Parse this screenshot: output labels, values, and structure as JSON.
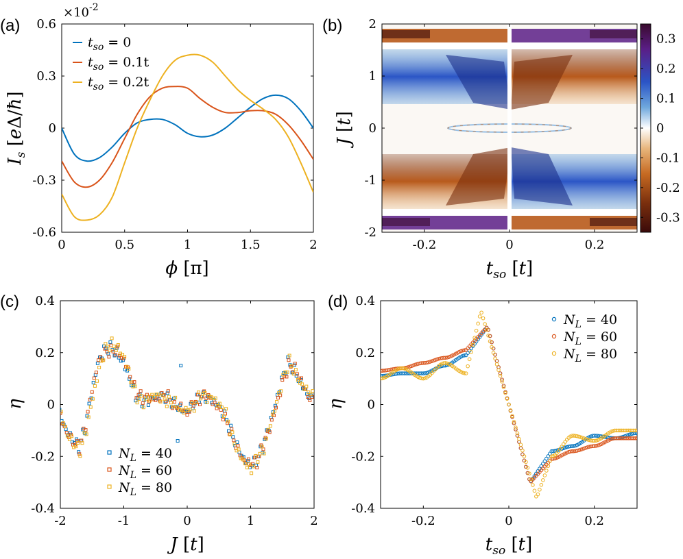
{
  "figure": {
    "panel_labels": [
      "(a)",
      "(b)",
      "(c)",
      "(d)"
    ]
  },
  "chart_data": [
    {
      "id": "a",
      "type": "line",
      "title": "",
      "xlabel": "φ [π]",
      "ylabel": "I_s [eΔ/ħ]",
      "exponent_label": "×10",
      "exponent_power": "-2",
      "xlim": [
        0,
        2
      ],
      "ylim": [
        -0.6,
        0.6
      ],
      "xticks": [
        "0",
        "0.5",
        "1",
        "1.5",
        "2"
      ],
      "yticks": [
        "-0.6",
        "-0.3",
        "0",
        "0.3",
        "0.6"
      ],
      "legend_position": "top-left",
      "x": [
        0,
        0.1,
        0.2,
        0.3,
        0.4,
        0.5,
        0.6,
        0.7,
        0.8,
        0.9,
        1.0,
        1.1,
        1.2,
        1.3,
        1.4,
        1.5,
        1.6,
        1.7,
        1.8,
        1.9,
        2.0
      ],
      "series": [
        {
          "name": "t_so = 0",
          "legend": "tso = 0",
          "color": "#0072BD",
          "values": [
            0.0,
            -0.15,
            -0.19,
            -0.17,
            -0.11,
            -0.03,
            0.03,
            0.05,
            0.05,
            0.02,
            -0.03,
            -0.05,
            -0.04,
            0.0,
            0.06,
            0.12,
            0.17,
            0.19,
            0.17,
            0.1,
            0.0
          ]
        },
        {
          "name": "t_so = 0.1t",
          "legend": "tso = 0.1t",
          "color": "#D95319",
          "values": [
            -0.19,
            -0.31,
            -0.34,
            -0.3,
            -0.2,
            -0.06,
            0.08,
            0.18,
            0.23,
            0.24,
            0.23,
            0.17,
            0.12,
            0.09,
            0.09,
            0.1,
            0.1,
            0.08,
            0.02,
            -0.07,
            -0.18
          ]
        },
        {
          "name": "t_so = 0.2t",
          "legend": "tso = 0.2t",
          "color": "#EDB120",
          "values": [
            -0.38,
            -0.51,
            -0.53,
            -0.5,
            -0.4,
            -0.2,
            0.0,
            0.16,
            0.3,
            0.39,
            0.42,
            0.42,
            0.38,
            0.3,
            0.22,
            0.16,
            0.11,
            0.05,
            -0.05,
            -0.2,
            -0.37
          ]
        }
      ]
    },
    {
      "id": "b",
      "type": "heatmap",
      "xlabel": "t_so [t]",
      "ylabel": "J [t]",
      "xlim": [
        -0.3,
        0.3
      ],
      "ylim": [
        -2,
        2
      ],
      "xticks": [
        "-0.2",
        "0",
        "0.2"
      ],
      "yticks": [
        "-2",
        "-1",
        "0",
        "1",
        "2"
      ],
      "colorbar_ticks": [
        "0.3",
        "0.2",
        "0.1",
        "0",
        "-0.1",
        "-0.2",
        "-0.3"
      ],
      "clim": [
        -0.35,
        0.35
      ],
      "colormap": [
        "#3a0a2e",
        "#5a1e86",
        "#2b55c6",
        "#6fa8dd",
        "#ffffff",
        "#e7b47a",
        "#c66a22",
        "#7a2f0d",
        "#3a0a0a"
      ]
    },
    {
      "id": "c",
      "type": "scatter",
      "xlabel": "J [t]",
      "ylabel": "η",
      "xlim": [
        -2,
        2
      ],
      "ylim": [
        -0.4,
        0.4
      ],
      "xticks": [
        "-2",
        "-1",
        "0",
        "1",
        "2"
      ],
      "yticks": [
        "-0.4",
        "-0.2",
        "0",
        "0.2",
        "0.4"
      ],
      "legend_position": "bottom-left",
      "marker": "square",
      "x": [
        -2.0,
        -1.9,
        -1.8,
        -1.7,
        -1.6,
        -1.5,
        -1.4,
        -1.3,
        -1.2,
        -1.1,
        -1.0,
        -0.9,
        -0.8,
        -0.7,
        -0.6,
        -0.5,
        -0.4,
        -0.3,
        -0.2,
        -0.1,
        0.0,
        0.1,
        0.2,
        0.3,
        0.4,
        0.5,
        0.6,
        0.7,
        0.8,
        0.9,
        1.0,
        1.1,
        1.2,
        1.3,
        1.4,
        1.5,
        1.6,
        1.7,
        1.8,
        1.9,
        2.0
      ],
      "series": [
        {
          "name": "N_L = 40",
          "legend": "NL = 40",
          "color": "#0072BD",
          "values": [
            -0.02,
            -0.08,
            -0.12,
            -0.16,
            -0.1,
            0.02,
            0.14,
            0.2,
            0.22,
            0.21,
            0.18,
            0.12,
            0.04,
            0.01,
            0.0,
            0.01,
            0.02,
            0.02,
            0.01,
            0.0,
            -0.01,
            0.01,
            0.03,
            0.02,
            0.0,
            -0.02,
            -0.05,
            -0.1,
            -0.15,
            -0.19,
            -0.22,
            -0.21,
            -0.17,
            -0.1,
            -0.02,
            0.08,
            0.16,
            0.14,
            0.1,
            0.06,
            0.02
          ],
          "outliers": [
            [
              -0.1,
              0.15
            ],
            [
              -0.15,
              -0.14
            ]
          ]
        },
        {
          "name": "N_L = 60",
          "legend": "NL = 60",
          "color": "#D95319",
          "values": [
            -0.03,
            -0.09,
            -0.13,
            -0.17,
            -0.09,
            0.04,
            0.15,
            0.19,
            0.21,
            0.22,
            0.19,
            0.13,
            0.05,
            0.02,
            0.01,
            0.0,
            0.02,
            0.03,
            0.0,
            0.01,
            -0.02,
            0.02,
            0.02,
            0.03,
            -0.01,
            -0.03,
            -0.06,
            -0.11,
            -0.16,
            -0.2,
            -0.21,
            -0.22,
            -0.16,
            -0.11,
            -0.03,
            0.07,
            0.15,
            0.15,
            0.11,
            0.05,
            0.01
          ]
        },
        {
          "name": "N_L = 80",
          "legend": "NL = 80",
          "color": "#EDB120",
          "values": [
            -0.02,
            -0.1,
            -0.14,
            -0.18,
            -0.11,
            0.01,
            0.12,
            0.21,
            0.24,
            0.23,
            0.2,
            0.11,
            0.03,
            0.0,
            0.01,
            0.02,
            0.01,
            0.01,
            0.02,
            -0.01,
            0.0,
            0.0,
            0.04,
            0.01,
            0.01,
            -0.02,
            -0.04,
            -0.12,
            -0.17,
            -0.21,
            -0.24,
            -0.2,
            -0.18,
            -0.09,
            -0.01,
            0.09,
            0.17,
            0.13,
            0.09,
            0.07,
            0.03
          ]
        }
      ]
    },
    {
      "id": "d",
      "type": "scatter",
      "xlabel": "t_so [t]",
      "ylabel": "η",
      "xlim": [
        -0.3,
        0.3
      ],
      "ylim": [
        -0.4,
        0.4
      ],
      "xticks": [
        "-0.2",
        "0",
        "0.2"
      ],
      "yticks": [
        "-0.4",
        "-0.2",
        "0",
        "0.2",
        "0.4"
      ],
      "legend_position": "top-right",
      "marker": "circle",
      "series": [
        {
          "name": "N_L = 40",
          "legend": "NL = 40",
          "color": "#0072BD",
          "knots": [
            [
              -0.3,
              0.11
            ],
            [
              -0.25,
              0.12
            ],
            [
              -0.2,
              0.12
            ],
            [
              -0.15,
              0.15
            ],
            [
              -0.1,
              0.19
            ],
            [
              -0.05,
              0.3
            ],
            [
              0.0,
              0.0
            ],
            [
              0.05,
              -0.3
            ],
            [
              0.1,
              -0.18
            ],
            [
              0.15,
              -0.16
            ],
            [
              0.2,
              -0.12
            ],
            [
              0.25,
              -0.13
            ],
            [
              0.3,
              -0.11
            ]
          ]
        },
        {
          "name": "N_L = 60",
          "legend": "NL = 60",
          "color": "#D95319",
          "knots": [
            [
              -0.3,
              0.13
            ],
            [
              -0.25,
              0.14
            ],
            [
              -0.2,
              0.16
            ],
            [
              -0.15,
              0.18
            ],
            [
              -0.1,
              0.21
            ],
            [
              -0.05,
              0.3
            ],
            [
              0.0,
              0.0
            ],
            [
              0.05,
              -0.3
            ],
            [
              0.1,
              -0.21
            ],
            [
              0.15,
              -0.18
            ],
            [
              0.2,
              -0.16
            ],
            [
              0.25,
              -0.13
            ],
            [
              0.3,
              -0.13
            ]
          ]
        },
        {
          "name": "N_L = 80",
          "legend": "NL = 80",
          "color": "#EDB120",
          "knots": [
            [
              -0.3,
              0.1
            ],
            [
              -0.25,
              0.14
            ],
            [
              -0.2,
              0.1
            ],
            [
              -0.15,
              0.16
            ],
            [
              -0.1,
              0.12
            ],
            [
              -0.065,
              0.36
            ],
            [
              0.0,
              0.0
            ],
            [
              0.065,
              -0.36
            ],
            [
              0.1,
              -0.2
            ],
            [
              0.15,
              -0.12
            ],
            [
              0.2,
              -0.14
            ],
            [
              0.25,
              -0.1
            ],
            [
              0.3,
              -0.1
            ]
          ]
        }
      ]
    }
  ]
}
